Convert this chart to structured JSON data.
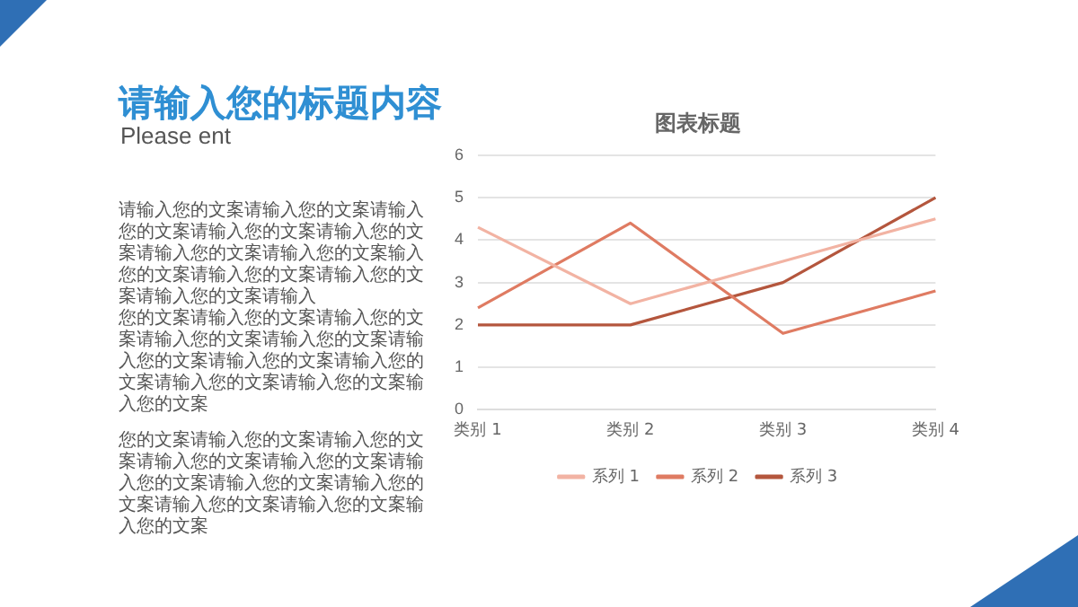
{
  "chart_data": {
    "type": "line",
    "title": "图表标题",
    "categories": [
      "类别 1",
      "类别 2",
      "类别 3",
      "类别 4"
    ],
    "series": [
      {
        "name": "系列 1",
        "color": "#f2b3a3",
        "values": [
          4.3,
          2.5,
          3.5,
          4.5
        ]
      },
      {
        "name": "系列 2",
        "color": "#df7b62",
        "values": [
          2.4,
          4.4,
          1.8,
          2.8
        ]
      },
      {
        "name": "系列 3",
        "color": "#b4563d",
        "values": [
          2,
          2,
          3,
          5
        ]
      }
    ],
    "ylim": [
      0,
      6
    ],
    "yticks": [
      0,
      1,
      2,
      3,
      4,
      5,
      6
    ],
    "grid": "y",
    "legend": "bottom",
    "marker": "none",
    "line_style": "solid",
    "annotations": [
      "请输入您的标题内容",
      "Please ent",
      "请输入您的文案请输入您的文案请输入您的文案请输入您的文案请输入您的文案请输入您的文案请输入您的文案输入您的文案请输入您的文案请输入您的文案请输入您的文案请输入",
      "您的文案请输入您的文案请输入您的文案请输入您的文案请输入您的文案请输入您的文案请输入您的文案请输入您的文案请输入您的文案请输入您的文案输入您的文案",
      "您的文案请输入您的文案请输入您的文案请输入您的文案请输入您的文案请输入您的文案请输入您的文案请输入您的文案请输入您的文案请输入您的文案输入您的文案"
    ]
  }
}
